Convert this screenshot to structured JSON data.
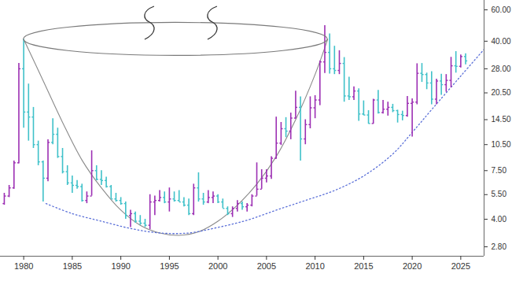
{
  "chart_data": {
    "type": "ohlc",
    "log": "y",
    "grid": false,
    "xlim": [
      1977.6,
      2027.4
    ],
    "xticks": [
      1980,
      1985,
      1990,
      1995,
      2000,
      2005,
      2010,
      2015,
      2020,
      2025
    ],
    "ylim": [
      2.48,
      67.8
    ],
    "yticks": [
      {
        "value": 2.8,
        "label": "2.80"
      },
      {
        "value": 4,
        "label": "4.00"
      },
      {
        "value": 5.5,
        "label": "5.50"
      },
      {
        "value": 7.5,
        "label": "7.50"
      },
      {
        "value": 10.5,
        "label": "10.50"
      },
      {
        "value": 14.5,
        "label": "14.50"
      },
      {
        "value": 20.5,
        "label": "20.50"
      },
      {
        "value": 28,
        "label": "28.00"
      },
      {
        "value": 40,
        "label": "40.00"
      },
      {
        "value": 60,
        "label": "60.00"
      }
    ],
    "x": [
      1978,
      1978.5,
      1979,
      1979.5,
      1980,
      1980.5,
      1981,
      1981.5,
      1982,
      1982.5,
      1983,
      1983.5,
      1984,
      1984.5,
      1985,
      1985.5,
      1986,
      1986.5,
      1987,
      1987.5,
      1988,
      1988.5,
      1989,
      1989.5,
      1990,
      1990.5,
      1991,
      1991.5,
      1992,
      1992.5,
      1993,
      1993.5,
      1994,
      1994.5,
      1995,
      1995.5,
      1996,
      1996.5,
      1997,
      1997.5,
      1998,
      1998.5,
      1999,
      1999.5,
      2000,
      2000.5,
      2001,
      2001.5,
      2002,
      2002.5,
      2003,
      2003.5,
      2004,
      2004.5,
      2005,
      2005.5,
      2006,
      2006.5,
      2007,
      2007.5,
      2008,
      2008.5,
      2009,
      2009.5,
      2010,
      2010.5,
      2011,
      2011.5,
      2012,
      2012.5,
      2013,
      2013.5,
      2014,
      2014.5,
      2015,
      2015.5,
      2016,
      2016.5,
      2017,
      2017.5,
      2018,
      2018.5,
      2019,
      2019.5,
      2020,
      2020.5,
      2021,
      2021.5,
      2022,
      2022.5,
      2023,
      2023.5,
      2024,
      2024.5,
      2025,
      2025.5
    ],
    "open": [
      4.9,
      5.4,
      6.0,
      8.3,
      28,
      16,
      15,
      10.5,
      8.4,
      6.8,
      10.8,
      12,
      9.0,
      7.4,
      6.4,
      6.2,
      6.1,
      5.1,
      5.4,
      7.5,
      6.7,
      6.6,
      6.1,
      5.2,
      5.1,
      4.9,
      4.2,
      4.3,
      3.9,
      3.8,
      3.7,
      5.0,
      5.1,
      5.3,
      5.0,
      5.2,
      5.1,
      5.0,
      4.8,
      4.3,
      6.0,
      5.2,
      5.0,
      5.3,
      5.4,
      5.0,
      4.6,
      4.3,
      4.6,
      4.9,
      4.7,
      4.8,
      5.4,
      5.9,
      6.8,
      7.0,
      8.8,
      10.7,
      12.9,
      12.5,
      14.8,
      17.0,
      11.3,
      13.6,
      16.9,
      18.7,
      30.6,
      34.6,
      28.0,
      27.4,
      30.0,
      19.7,
      19.5,
      21.0,
      15.6,
      15.4,
      13.8,
      18.7,
      15.9,
      16.6,
      17.0,
      16.3,
      15.5,
      15.3,
      17.9,
      18.2,
      26.4,
      26.0,
      23.3,
      18.9,
      23.9,
      22.8,
      24.1,
      29.1,
      28.9,
      32.8
    ],
    "high": [
      5.6,
      6.2,
      8.5,
      30,
      41,
      23,
      17,
      11,
      8.5,
      11.2,
      14.7,
      13,
      10.0,
      8.0,
      7.0,
      6.6,
      6.3,
      5.7,
      9.7,
      8.0,
      7.5,
      6.9,
      6.2,
      5.6,
      5.3,
      5.0,
      4.5,
      4.4,
      4.2,
      4.0,
      5.5,
      5.4,
      5.8,
      5.7,
      6.0,
      5.7,
      5.8,
      5.3,
      5.2,
      6.3,
      7.3,
      5.6,
      5.8,
      5.7,
      5.5,
      5.2,
      4.7,
      4.7,
      5.1,
      5.0,
      4.9,
      5.5,
      8.3,
      7.6,
      7.6,
      9.0,
      15.0,
      14.0,
      14.9,
      15.8,
      21.0,
      19.5,
      14.5,
      19.5,
      19.8,
      31.0,
      49.0,
      44.0,
      37.5,
      35.4,
      32.4,
      25.1,
      22.2,
      21.6,
      18.5,
      16.3,
      18.9,
      21.2,
      18.6,
      18.2,
      17.7,
      16.4,
      16.2,
      19.6,
      19.0,
      29.9,
      30.0,
      26.5,
      27.0,
      24.5,
      26.1,
      26.0,
      32.5,
      35.0,
      33.5,
      34.0
    ],
    "low": [
      4.8,
      5.3,
      5.9,
      8.2,
      13,
      11,
      10,
      8,
      5.0,
      6.5,
      10.5,
      8.8,
      7.2,
      6.2,
      5.6,
      5.9,
      5.0,
      4.9,
      5.4,
      6.6,
      6.2,
      6.0,
      5.2,
      5.0,
      4.8,
      4.0,
      3.6,
      3.8,
      3.7,
      3.6,
      3.5,
      4.2,
      5.0,
      4.9,
      4.4,
      5.0,
      5.0,
      4.7,
      4.2,
      4.2,
      5.0,
      4.8,
      4.9,
      4.9,
      4.9,
      4.6,
      4.2,
      4.1,
      4.4,
      4.5,
      4.4,
      4.7,
      5.4,
      5.9,
      6.4,
      6.7,
      8.7,
      10.4,
      11.5,
      11.2,
      14.6,
      8.5,
      10.5,
      12.9,
      14.7,
      17.4,
      26.4,
      26.2,
      26.0,
      26.0,
      18.2,
      18.6,
      18.6,
      14.2,
      15.3,
      13.7,
      13.7,
      15.6,
      15.6,
      15.2,
      15.9,
      13.9,
      14.3,
      15.0,
      11.6,
      17.6,
      23.5,
      21.4,
      17.6,
      17.6,
      19.9,
      20.7,
      21.9,
      26.5,
      28.3,
      29.5
    ],
    "close": [
      5.4,
      6.0,
      8.3,
      28,
      16,
      15,
      10.5,
      8.4,
      6.8,
      10.8,
      12,
      9.0,
      7.4,
      6.4,
      6.2,
      6.1,
      5.1,
      5.4,
      7.5,
      6.7,
      6.6,
      6.1,
      5.2,
      5.1,
      4.9,
      4.2,
      4.3,
      3.9,
      3.8,
      3.7,
      5.0,
      5.1,
      5.3,
      5.0,
      5.2,
      5.1,
      5.0,
      4.8,
      4.3,
      6.0,
      5.2,
      5.0,
      5.3,
      5.4,
      5.0,
      4.6,
      4.3,
      4.6,
      4.9,
      4.7,
      4.8,
      5.4,
      5.9,
      6.8,
      7.0,
      8.8,
      10.7,
      12.9,
      12.5,
      14.8,
      17.0,
      11.3,
      13.6,
      16.9,
      18.7,
      30.6,
      34.6,
      28.0,
      27.4,
      30.0,
      19.7,
      19.5,
      21.0,
      15.6,
      15.4,
      13.8,
      18.7,
      15.9,
      16.6,
      17.0,
      16.3,
      15.5,
      15.3,
      17.9,
      18.2,
      26.4,
      26.0,
      23.3,
      18.9,
      23.9,
      22.8,
      24.1,
      29.1,
      28.9,
      32.8,
      31.0
    ],
    "colors": [
      "#9c2fb3",
      "#9c2fb3",
      "#9c2fb3",
      "#9c2fb3",
      "#3fc1c9",
      "#3fc1c9",
      "#3fc1c9",
      "#3fc1c9",
      "#3fc1c9",
      "#9c2fb3",
      "#3fc1c9",
      "#3fc1c9",
      "#3fc1c9",
      "#3fc1c9",
      "#3fc1c9",
      "#3fc1c9",
      "#3fc1c9",
      "#9c2fb3",
      "#9c2fb3",
      "#3fc1c9",
      "#3fc1c9",
      "#3fc1c9",
      "#3fc1c9",
      "#3fc1c9",
      "#3fc1c9",
      "#3fc1c9",
      "#9c2fb3",
      "#3fc1c9",
      "#3fc1c9",
      "#3fc1c9",
      "#9c2fb3",
      "#9c2fb3",
      "#9c2fb3",
      "#3fc1c9",
      "#9c2fb3",
      "#3fc1c9",
      "#3fc1c9",
      "#3fc1c9",
      "#3fc1c9",
      "#9c2fb3",
      "#3fc1c9",
      "#3fc1c9",
      "#9c2fb3",
      "#9c2fb3",
      "#3fc1c9",
      "#3fc1c9",
      "#3fc1c9",
      "#9c2fb3",
      "#9c2fb3",
      "#3fc1c9",
      "#9c2fb3",
      "#9c2fb3",
      "#9c2fb3",
      "#9c2fb3",
      "#9c2fb3",
      "#9c2fb3",
      "#9c2fb3",
      "#9c2fb3",
      "#3fc1c9",
      "#9c2fb3",
      "#9c2fb3",
      "#3fc1c9",
      "#9c2fb3",
      "#9c2fb3",
      "#9c2fb3",
      "#9c2fb3",
      "#9c2fb3",
      "#3fc1c9",
      "#3fc1c9",
      "#9c2fb3",
      "#3fc1c9",
      "#3fc1c9",
      "#9c2fb3",
      "#3fc1c9",
      "#3fc1c9",
      "#3fc1c9",
      "#9c2fb3",
      "#3fc1c9",
      "#9c2fb3",
      "#9c2fb3",
      "#3fc1c9",
      "#3fc1c9",
      "#3fc1c9",
      "#9c2fb3",
      "#9c2fb3",
      "#9c2fb3",
      "#3fc1c9",
      "#3fc1c9",
      "#3fc1c9",
      "#9c2fb3",
      "#3fc1c9",
      "#9c2fb3",
      "#9c2fb3",
      "#3fc1c9",
      "#9c2fb3",
      "#3fc1c9"
    ],
    "series": [
      {
        "type": "line",
        "color": "#8a8a8a",
        "line_style": "solid",
        "x": [
          1980,
          1982,
          1984,
          1986,
          1988,
          1990,
          1992,
          1994,
          1996,
          1998,
          2000,
          2002,
          2004,
          2006,
          2008,
          2010,
          2011.3
        ],
        "values": [
          41,
          24,
          14,
          8.6,
          6.0,
          4.5,
          3.7,
          3.35,
          3.25,
          3.4,
          3.9,
          4.8,
          6.3,
          9.0,
          14.5,
          26,
          41
        ]
      },
      {
        "type": "line",
        "color": "#5a6fd8",
        "line_style": "dotted",
        "x": [
          1982.3,
          1985,
          1988,
          1991,
          1994,
          1997,
          2000,
          2003,
          2006,
          2009,
          2012,
          2015,
          2018,
          2020,
          2022,
          2025,
          2027.4
        ],
        "values": [
          4.9,
          4.3,
          3.9,
          3.55,
          3.35,
          3.35,
          3.6,
          3.95,
          4.5,
          5.1,
          5.8,
          7.0,
          9.3,
          12.3,
          16.5,
          25.5,
          36
        ]
      }
    ]
  }
}
